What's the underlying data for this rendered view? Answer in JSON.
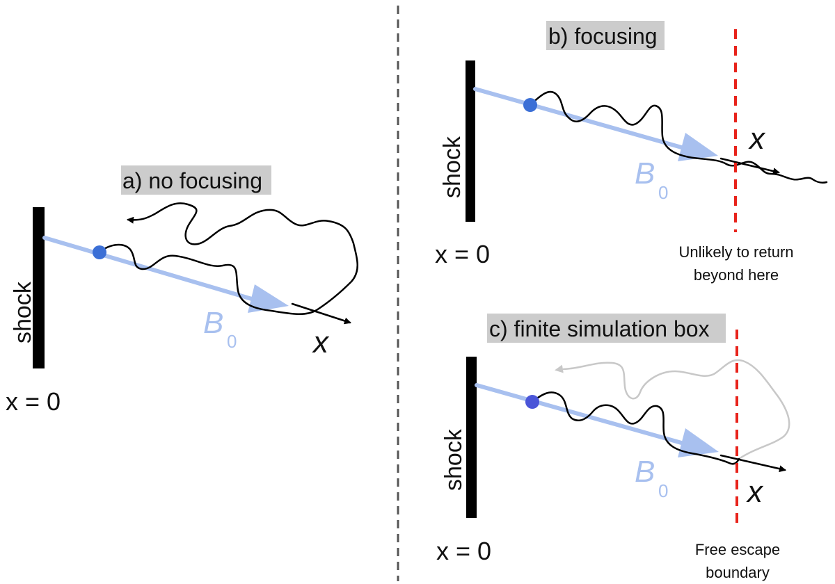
{
  "panels": {
    "a": {
      "title": "a) no focusing",
      "shock_label": "shock",
      "origin_label": "x = 0",
      "axis_label": "x",
      "field_label": "B",
      "field_subscript": "0"
    },
    "b": {
      "title": "b) focusing",
      "shock_label": "shock",
      "origin_label": "x = 0",
      "axis_label": "x",
      "field_label": "B",
      "field_subscript": "0",
      "boundary_note_line1": "Unlikely to return",
      "boundary_note_line2": "beyond here"
    },
    "c": {
      "title": "c) finite simulation box",
      "shock_label": "shock",
      "origin_label": "x = 0",
      "axis_label": "x",
      "field_label": "B",
      "field_subscript": "0",
      "boundary_note_line1": "Free escape",
      "boundary_note_line2": "boundary"
    }
  },
  "colors": {
    "field_line": "#a8c0ef",
    "particle_a": "#3b6fd6",
    "particle_b": "#3b6fd6",
    "particle_c": "#4a55d8",
    "boundary": "#e8231b",
    "label_bg": "#cccccc",
    "faint_path": "#c8c8c8"
  }
}
